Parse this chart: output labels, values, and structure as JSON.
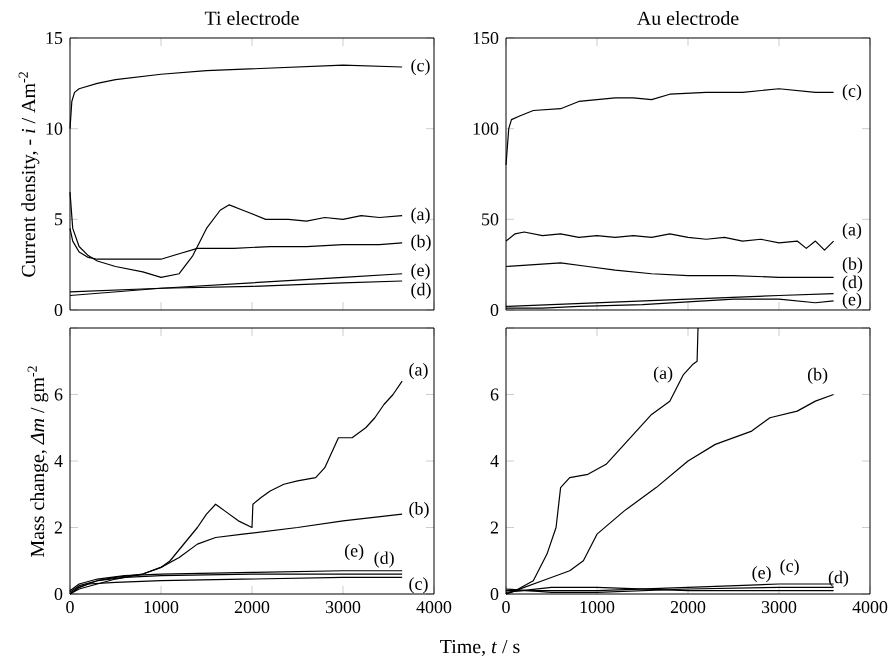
{
  "chart_data": [
    {
      "type": "line",
      "title": "Ti electrode",
      "ylabel": "Current density, - *i* / Am$^{-2}$",
      "xlim": [
        0,
        4000
      ],
      "ylim": [
        0,
        15
      ],
      "xticks": [
        0,
        1000,
        2000,
        3000,
        4000
      ],
      "yticks": [
        0,
        5,
        10,
        15
      ],
      "tick_labels": "y",
      "series": [
        {
          "color": "#000000",
          "x": [
            0,
            30,
            100,
            200,
            300,
            500,
            800,
            1000,
            1200,
            1350,
            1500,
            1650,
            1750,
            1900,
            2150,
            2400,
            2600,
            2800,
            3000,
            3200,
            3400,
            3650
          ],
          "values": [
            6.5,
            4.5,
            3.5,
            3.0,
            2.7,
            2.4,
            2.1,
            1.8,
            2.0,
            3.0,
            4.5,
            5.5,
            5.8,
            5.5,
            5.0,
            5.0,
            4.9,
            5.1,
            5.0,
            5.2,
            5.1,
            5.2
          ]
        },
        {
          "color": "#000000",
          "x": [
            0,
            30,
            100,
            200,
            300,
            600,
            1000,
            1200,
            1400,
            1800,
            2200,
            2600,
            3000,
            3400,
            3650
          ],
          "values": [
            4.5,
            3.8,
            3.2,
            2.9,
            2.8,
            2.8,
            2.8,
            3.1,
            3.4,
            3.4,
            3.5,
            3.5,
            3.6,
            3.6,
            3.7
          ]
        },
        {
          "color": "#000000",
          "x": [
            0,
            20,
            50,
            100,
            300,
            500,
            1000,
            1500,
            2000,
            2500,
            3000,
            3650
          ],
          "values": [
            10.0,
            11.5,
            12.0,
            12.2,
            12.5,
            12.7,
            13.0,
            13.2,
            13.3,
            13.4,
            13.5,
            13.4
          ]
        },
        {
          "color": "#000000",
          "x": [
            0,
            1000,
            2000,
            3000,
            3650
          ],
          "values": [
            1.0,
            1.2,
            1.3,
            1.5,
            1.6
          ]
        },
        {
          "color": "#000000",
          "x": [
            0,
            1000,
            2000,
            3000,
            3650
          ],
          "values": [
            0.8,
            1.2,
            1.5,
            1.8,
            2.0
          ]
        }
      ],
      "annotations": [
        "(a)",
        "(b)",
        "(c)",
        "(d)",
        "(e)"
      ]
    },
    {
      "type": "line",
      "title": "Au electrode",
      "xlim": [
        0,
        4000
      ],
      "ylim": [
        0,
        150
      ],
      "xticks": [
        0,
        1000,
        2000,
        3000,
        4000
      ],
      "yticks": [
        0,
        50,
        100,
        150
      ],
      "tick_labels": "y",
      "series": [
        {
          "color": "#000000",
          "x": [
            0,
            100,
            200,
            400,
            600,
            800,
            1000,
            1200,
            1400,
            1600,
            1800,
            2000,
            2200,
            2400,
            2600,
            2800,
            3000,
            3200,
            3300,
            3400,
            3500,
            3600
          ],
          "values": [
            38,
            42,
            43,
            41,
            42,
            40,
            41,
            40,
            41,
            40,
            42,
            40,
            39,
            40,
            38,
            39,
            37,
            38,
            34,
            38,
            33,
            38
          ]
        },
        {
          "color": "#000000",
          "x": [
            0,
            300,
            600,
            900,
            1200,
            1600,
            2000,
            2500,
            3000,
            3600
          ],
          "values": [
            24,
            25,
            26,
            24,
            22,
            20,
            19,
            19,
            18,
            18
          ]
        },
        {
          "color": "#000000",
          "x": [
            0,
            30,
            60,
            150,
            300,
            600,
            800,
            1000,
            1200,
            1400,
            1600,
            1800,
            2200,
            2600,
            3000,
            3400,
            3600
          ],
          "values": [
            80,
            100,
            105,
            107,
            110,
            111,
            115,
            116,
            117,
            117,
            116,
            119,
            120,
            120,
            122,
            120,
            120
          ]
        },
        {
          "color": "#000000",
          "x": [
            0,
            1000,
            2000,
            3000,
            3600
          ],
          "values": [
            2,
            4,
            6,
            8,
            9
          ]
        },
        {
          "color": "#000000",
          "x": [
            0,
            200,
            400,
            800,
            1500,
            2500,
            3000,
            3400,
            3600
          ],
          "values": [
            1,
            1,
            1,
            2,
            3,
            6,
            6,
            4,
            5
          ]
        }
      ],
      "annotations": [
        "(a)",
        "(b)",
        "(c)",
        "(d)",
        "(e)"
      ]
    },
    {
      "type": "line",
      "ylabel": "Mass change, *Δm* / gm$^{-2}$",
      "xlabel": "Time, *t* / s",
      "xlim": [
        0,
        4000
      ],
      "ylim": [
        0,
        8
      ],
      "xticks": [
        0,
        1000,
        2000,
        3000,
        4000
      ],
      "yticks": [
        0,
        2,
        4,
        6,
        {
          "value": 8,
          "label": null
        }
      ],
      "series": [
        {
          "color": "#000000",
          "x": [
            0,
            100,
            300,
            500,
            800,
            1000,
            1100,
            1250,
            1400,
            1500,
            1600,
            1700,
            1850,
            2000,
            2010,
            2100,
            2200,
            2350,
            2500,
            2700,
            2800,
            2950,
            3100,
            3250,
            3350,
            3450,
            3550,
            3650
          ],
          "values": [
            0,
            0.15,
            0.3,
            0.45,
            0.6,
            0.8,
            1.0,
            1.5,
            2.0,
            2.4,
            2.7,
            2.5,
            2.2,
            2.0,
            2.7,
            2.9,
            3.1,
            3.3,
            3.4,
            3.5,
            3.8,
            4.7,
            4.7,
            5.0,
            5.3,
            5.7,
            6.0,
            6.4
          ]
        },
        {
          "color": "#000000",
          "x": [
            0,
            100,
            300,
            500,
            800,
            1000,
            1200,
            1400,
            1600,
            1900,
            2500,
            3000,
            3650
          ],
          "values": [
            0,
            0.2,
            0.4,
            0.5,
            0.6,
            0.8,
            1.1,
            1.5,
            1.7,
            1.8,
            2.0,
            2.2,
            2.4
          ]
        },
        {
          "color": "#000000",
          "x": [
            0,
            100,
            200,
            500,
            1000,
            2000,
            3000,
            3650
          ],
          "values": [
            0,
            0.2,
            0.3,
            0.35,
            0.4,
            0.45,
            0.5,
            0.5
          ]
        },
        {
          "color": "#000000",
          "x": [
            0,
            100,
            300,
            600,
            1000,
            2000,
            3000,
            3650
          ],
          "values": [
            0.05,
            0.25,
            0.4,
            0.5,
            0.55,
            0.6,
            0.6,
            0.6
          ]
        },
        {
          "color": "#000000",
          "x": [
            0,
            100,
            300,
            600,
            1000,
            2000,
            3000,
            3650
          ],
          "values": [
            0.1,
            0.3,
            0.45,
            0.55,
            0.6,
            0.65,
            0.7,
            0.7
          ]
        }
      ],
      "annotations": [
        "(a)",
        "(b)",
        "(c)",
        "(d)",
        "(e)"
      ]
    },
    {
      "type": "line",
      "xlim": [
        0,
        4000
      ],
      "ylim": [
        0,
        8
      ],
      "xticks": [
        0,
        1000,
        2000,
        3000,
        4000
      ],
      "yticks": [
        0,
        2,
        4,
        6,
        {
          "value": 8,
          "label": null
        }
      ],
      "series": [
        {
          "color": "#000000",
          "x": [
            0,
            100,
            300,
            450,
            550,
            600,
            700,
            900,
            1100,
            1200,
            1400,
            1600,
            1800,
            1950,
            2050,
            2100,
            2110
          ],
          "values": [
            0,
            0.1,
            0.4,
            1.2,
            2.0,
            3.2,
            3.5,
            3.6,
            3.9,
            4.2,
            4.8,
            5.4,
            5.8,
            6.6,
            6.9,
            7.0,
            8.0
          ]
        },
        {
          "color": "#000000",
          "x": [
            0,
            200,
            400,
            700,
            850,
            1000,
            1300,
            1650,
            2000,
            2300,
            2700,
            2900,
            3200,
            3400,
            3600
          ],
          "values": [
            0,
            0.2,
            0.4,
            0.7,
            1.0,
            1.8,
            2.5,
            3.2,
            4.0,
            4.5,
            4.9,
            5.3,
            5.5,
            5.8,
            6.0
          ]
        },
        {
          "color": "#000000",
          "x": [
            0,
            500,
            1000,
            2000,
            3000,
            3600
          ],
          "values": [
            0.1,
            0.1,
            0.1,
            0.2,
            0.3,
            0.3
          ]
        },
        {
          "color": "#000000",
          "x": [
            0,
            500,
            1000,
            2000,
            3000,
            3600
          ],
          "values": [
            0.15,
            0.05,
            0.05,
            0.15,
            0.2,
            0.2
          ]
        },
        {
          "color": "#000000",
          "x": [
            0,
            500,
            1000,
            2000,
            3000,
            3600
          ],
          "values": [
            0.05,
            0.2,
            0.2,
            0.1,
            0.1,
            0.1
          ]
        }
      ],
      "annotations": [
        "(a)",
        "(b)",
        "(c)",
        "(d)",
        "(e)"
      ]
    }
  ]
}
